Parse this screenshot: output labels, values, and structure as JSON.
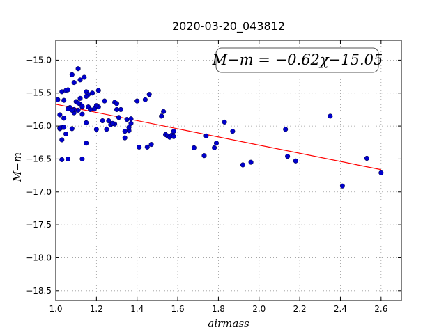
{
  "chart_data": {
    "type": "scatter",
    "title": "2020-03-20_043812",
    "xlabel": "airmass",
    "ylabel": "M−m",
    "xlim": [
      1.0,
      2.7
    ],
    "ylim": [
      -18.65,
      -14.7
    ],
    "xticks": [
      1.0,
      1.2,
      1.4,
      1.6,
      1.8,
      2.0,
      2.2,
      2.4,
      2.6
    ],
    "yticks": [
      -15.0,
      -15.5,
      -16.0,
      -16.5,
      -17.0,
      -17.5,
      -18.0,
      -18.5
    ],
    "xtick_labels": [
      "1.0",
      "1.2",
      "1.4",
      "1.6",
      "1.8",
      "2.0",
      "2.2",
      "2.4",
      "2.6"
    ],
    "ytick_labels": [
      "−15.0",
      "−15.5",
      "−16.0",
      "−16.5",
      "−17.0",
      "−17.5",
      "−18.0",
      "−18.5"
    ],
    "grid": true,
    "annotation": "M−m = −0.62χ−15.05",
    "annotation_position": "top-right",
    "fit": {
      "slope": -0.62,
      "intercept": -15.05,
      "x_range": [
        1.0,
        2.6
      ],
      "color": "#ff0000"
    },
    "marker_color": "#0000cc",
    "x": [
      1.01,
      1.02,
      1.03,
      1.03,
      1.04,
      1.04,
      1.05,
      1.06,
      1.07,
      1.08,
      1.09,
      1.1,
      1.11,
      1.12,
      1.12,
      1.13,
      1.14,
      1.15,
      1.16,
      1.16,
      1.18,
      1.21,
      1.24,
      1.02,
      1.03,
      1.05,
      1.06,
      1.08,
      1.09,
      1.11,
      1.13,
      1.15,
      1.17,
      1.2,
      1.21,
      1.23,
      1.02,
      1.03,
      1.04,
      1.07,
      1.09,
      1.12,
      1.13,
      1.15,
      1.19,
      1.25,
      1.27,
      1.29,
      1.3,
      1.04,
      1.06,
      1.08,
      1.11,
      1.13,
      1.15,
      1.2,
      1.26,
      1.28,
      1.31,
      1.32,
      1.34,
      1.35,
      1.36,
      1.37,
      1.4,
      1.44,
      1.46,
      1.29,
      1.3,
      1.34,
      1.36,
      1.37,
      1.41,
      1.45,
      1.47,
      1.52,
      1.53,
      1.54,
      1.55,
      1.56,
      1.57,
      1.58,
      1.52,
      1.58,
      1.68,
      1.73,
      1.74,
      1.78,
      1.79,
      1.83,
      1.87,
      1.92,
      1.96,
      2.13,
      2.14,
      2.18,
      2.35,
      2.41,
      2.53,
      2.6
    ],
    "y": [
      -15.6,
      -15.83,
      -16.02,
      -15.48,
      -15.61,
      -15.88,
      -15.46,
      -15.45,
      -15.74,
      -15.22,
      -15.34,
      -15.63,
      -15.13,
      -15.67,
      -15.58,
      -15.71,
      -15.26,
      -15.48,
      -15.52,
      -15.71,
      -15.5,
      -15.71,
      -15.62,
      -16.04,
      -16.21,
      -16.12,
      -16.5,
      -16.04,
      -15.8,
      -15.76,
      -15.82,
      -15.95,
      -15.75,
      -16.05,
      -15.46,
      -15.92,
      -16.03,
      -16.51,
      -16.02,
      -15.72,
      -15.75,
      -15.3,
      -16.5,
      -16.26,
      -15.74,
      -16.05,
      -15.98,
      -15.97,
      -15.75,
      -15.88,
      -15.74,
      -15.76,
      -15.65,
      -15.7,
      -15.55,
      -15.69,
      -15.92,
      -15.96,
      -15.87,
      -15.75,
      -16.18,
      -15.9,
      -16.07,
      -15.96,
      -15.62,
      -15.6,
      -15.52,
      -15.64,
      -15.66,
      -16.08,
      -16.02,
      -15.89,
      -16.32,
      -16.32,
      -16.28,
      -15.85,
      -15.78,
      -16.13,
      -16.15,
      -16.17,
      -16.14,
      -16.16,
      -15.85,
      -16.08,
      -16.33,
      -16.45,
      -16.15,
      -16.33,
      -16.26,
      -15.94,
      -16.08,
      -16.59,
      -16.55,
      -16.05,
      -16.46,
      -16.53,
      -15.85,
      -16.91,
      -16.49,
      -16.71
    ]
  }
}
